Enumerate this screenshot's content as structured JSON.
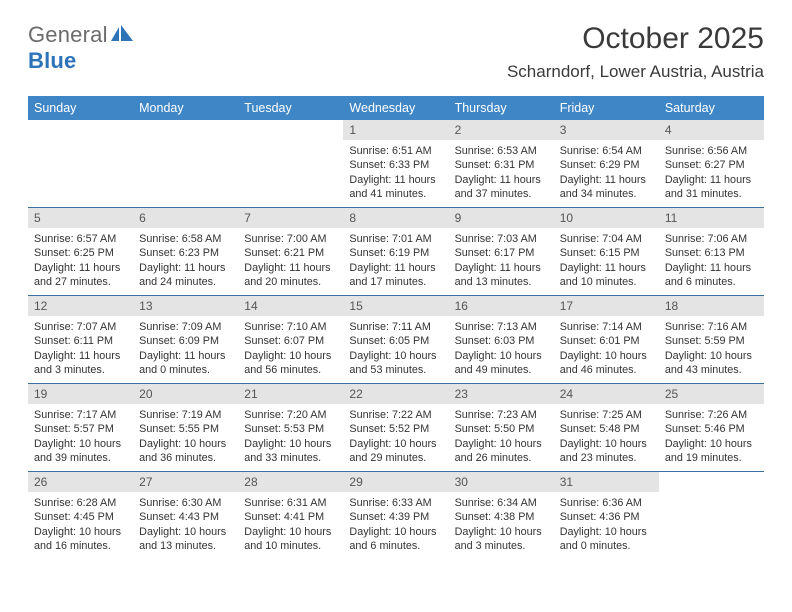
{
  "logo": {
    "general": "General",
    "blue": "Blue"
  },
  "title": "October 2025",
  "location": "Scharndorf, Lower Austria, Austria",
  "columns": [
    "Sunday",
    "Monday",
    "Tuesday",
    "Wednesday",
    "Thursday",
    "Friday",
    "Saturday"
  ],
  "colors": {
    "header_bg": "#3f86c6",
    "header_fg": "#ffffff",
    "daynum_bg": "#e4e4e4",
    "rule": "#3f6ea0",
    "text": "#333333",
    "logo_gray": "#6b6b6b",
    "logo_blue": "#2d73b8"
  },
  "weeks": [
    [
      null,
      null,
      null,
      {
        "n": "1",
        "sr": "6:51 AM",
        "ss": "6:33 PM",
        "dl": "11 hours and 41 minutes."
      },
      {
        "n": "2",
        "sr": "6:53 AM",
        "ss": "6:31 PM",
        "dl": "11 hours and 37 minutes."
      },
      {
        "n": "3",
        "sr": "6:54 AM",
        "ss": "6:29 PM",
        "dl": "11 hours and 34 minutes."
      },
      {
        "n": "4",
        "sr": "6:56 AM",
        "ss": "6:27 PM",
        "dl": "11 hours and 31 minutes."
      }
    ],
    [
      {
        "n": "5",
        "sr": "6:57 AM",
        "ss": "6:25 PM",
        "dl": "11 hours and 27 minutes."
      },
      {
        "n": "6",
        "sr": "6:58 AM",
        "ss": "6:23 PM",
        "dl": "11 hours and 24 minutes."
      },
      {
        "n": "7",
        "sr": "7:00 AM",
        "ss": "6:21 PM",
        "dl": "11 hours and 20 minutes."
      },
      {
        "n": "8",
        "sr": "7:01 AM",
        "ss": "6:19 PM",
        "dl": "11 hours and 17 minutes."
      },
      {
        "n": "9",
        "sr": "7:03 AM",
        "ss": "6:17 PM",
        "dl": "11 hours and 13 minutes."
      },
      {
        "n": "10",
        "sr": "7:04 AM",
        "ss": "6:15 PM",
        "dl": "11 hours and 10 minutes."
      },
      {
        "n": "11",
        "sr": "7:06 AM",
        "ss": "6:13 PM",
        "dl": "11 hours and 6 minutes."
      }
    ],
    [
      {
        "n": "12",
        "sr": "7:07 AM",
        "ss": "6:11 PM",
        "dl": "11 hours and 3 minutes."
      },
      {
        "n": "13",
        "sr": "7:09 AM",
        "ss": "6:09 PM",
        "dl": "11 hours and 0 minutes."
      },
      {
        "n": "14",
        "sr": "7:10 AM",
        "ss": "6:07 PM",
        "dl": "10 hours and 56 minutes."
      },
      {
        "n": "15",
        "sr": "7:11 AM",
        "ss": "6:05 PM",
        "dl": "10 hours and 53 minutes."
      },
      {
        "n": "16",
        "sr": "7:13 AM",
        "ss": "6:03 PM",
        "dl": "10 hours and 49 minutes."
      },
      {
        "n": "17",
        "sr": "7:14 AM",
        "ss": "6:01 PM",
        "dl": "10 hours and 46 minutes."
      },
      {
        "n": "18",
        "sr": "7:16 AM",
        "ss": "5:59 PM",
        "dl": "10 hours and 43 minutes."
      }
    ],
    [
      {
        "n": "19",
        "sr": "7:17 AM",
        "ss": "5:57 PM",
        "dl": "10 hours and 39 minutes."
      },
      {
        "n": "20",
        "sr": "7:19 AM",
        "ss": "5:55 PM",
        "dl": "10 hours and 36 minutes."
      },
      {
        "n": "21",
        "sr": "7:20 AM",
        "ss": "5:53 PM",
        "dl": "10 hours and 33 minutes."
      },
      {
        "n": "22",
        "sr": "7:22 AM",
        "ss": "5:52 PM",
        "dl": "10 hours and 29 minutes."
      },
      {
        "n": "23",
        "sr": "7:23 AM",
        "ss": "5:50 PM",
        "dl": "10 hours and 26 minutes."
      },
      {
        "n": "24",
        "sr": "7:25 AM",
        "ss": "5:48 PM",
        "dl": "10 hours and 23 minutes."
      },
      {
        "n": "25",
        "sr": "7:26 AM",
        "ss": "5:46 PM",
        "dl": "10 hours and 19 minutes."
      }
    ],
    [
      {
        "n": "26",
        "sr": "6:28 AM",
        "ss": "4:45 PM",
        "dl": "10 hours and 16 minutes."
      },
      {
        "n": "27",
        "sr": "6:30 AM",
        "ss": "4:43 PM",
        "dl": "10 hours and 13 minutes."
      },
      {
        "n": "28",
        "sr": "6:31 AM",
        "ss": "4:41 PM",
        "dl": "10 hours and 10 minutes."
      },
      {
        "n": "29",
        "sr": "6:33 AM",
        "ss": "4:39 PM",
        "dl": "10 hours and 6 minutes."
      },
      {
        "n": "30",
        "sr": "6:34 AM",
        "ss": "4:38 PM",
        "dl": "10 hours and 3 minutes."
      },
      {
        "n": "31",
        "sr": "6:36 AM",
        "ss": "4:36 PM",
        "dl": "10 hours and 0 minutes."
      },
      null
    ]
  ],
  "labels": {
    "sunrise": "Sunrise: ",
    "sunset": "Sunset: ",
    "daylight": "Daylight: "
  }
}
